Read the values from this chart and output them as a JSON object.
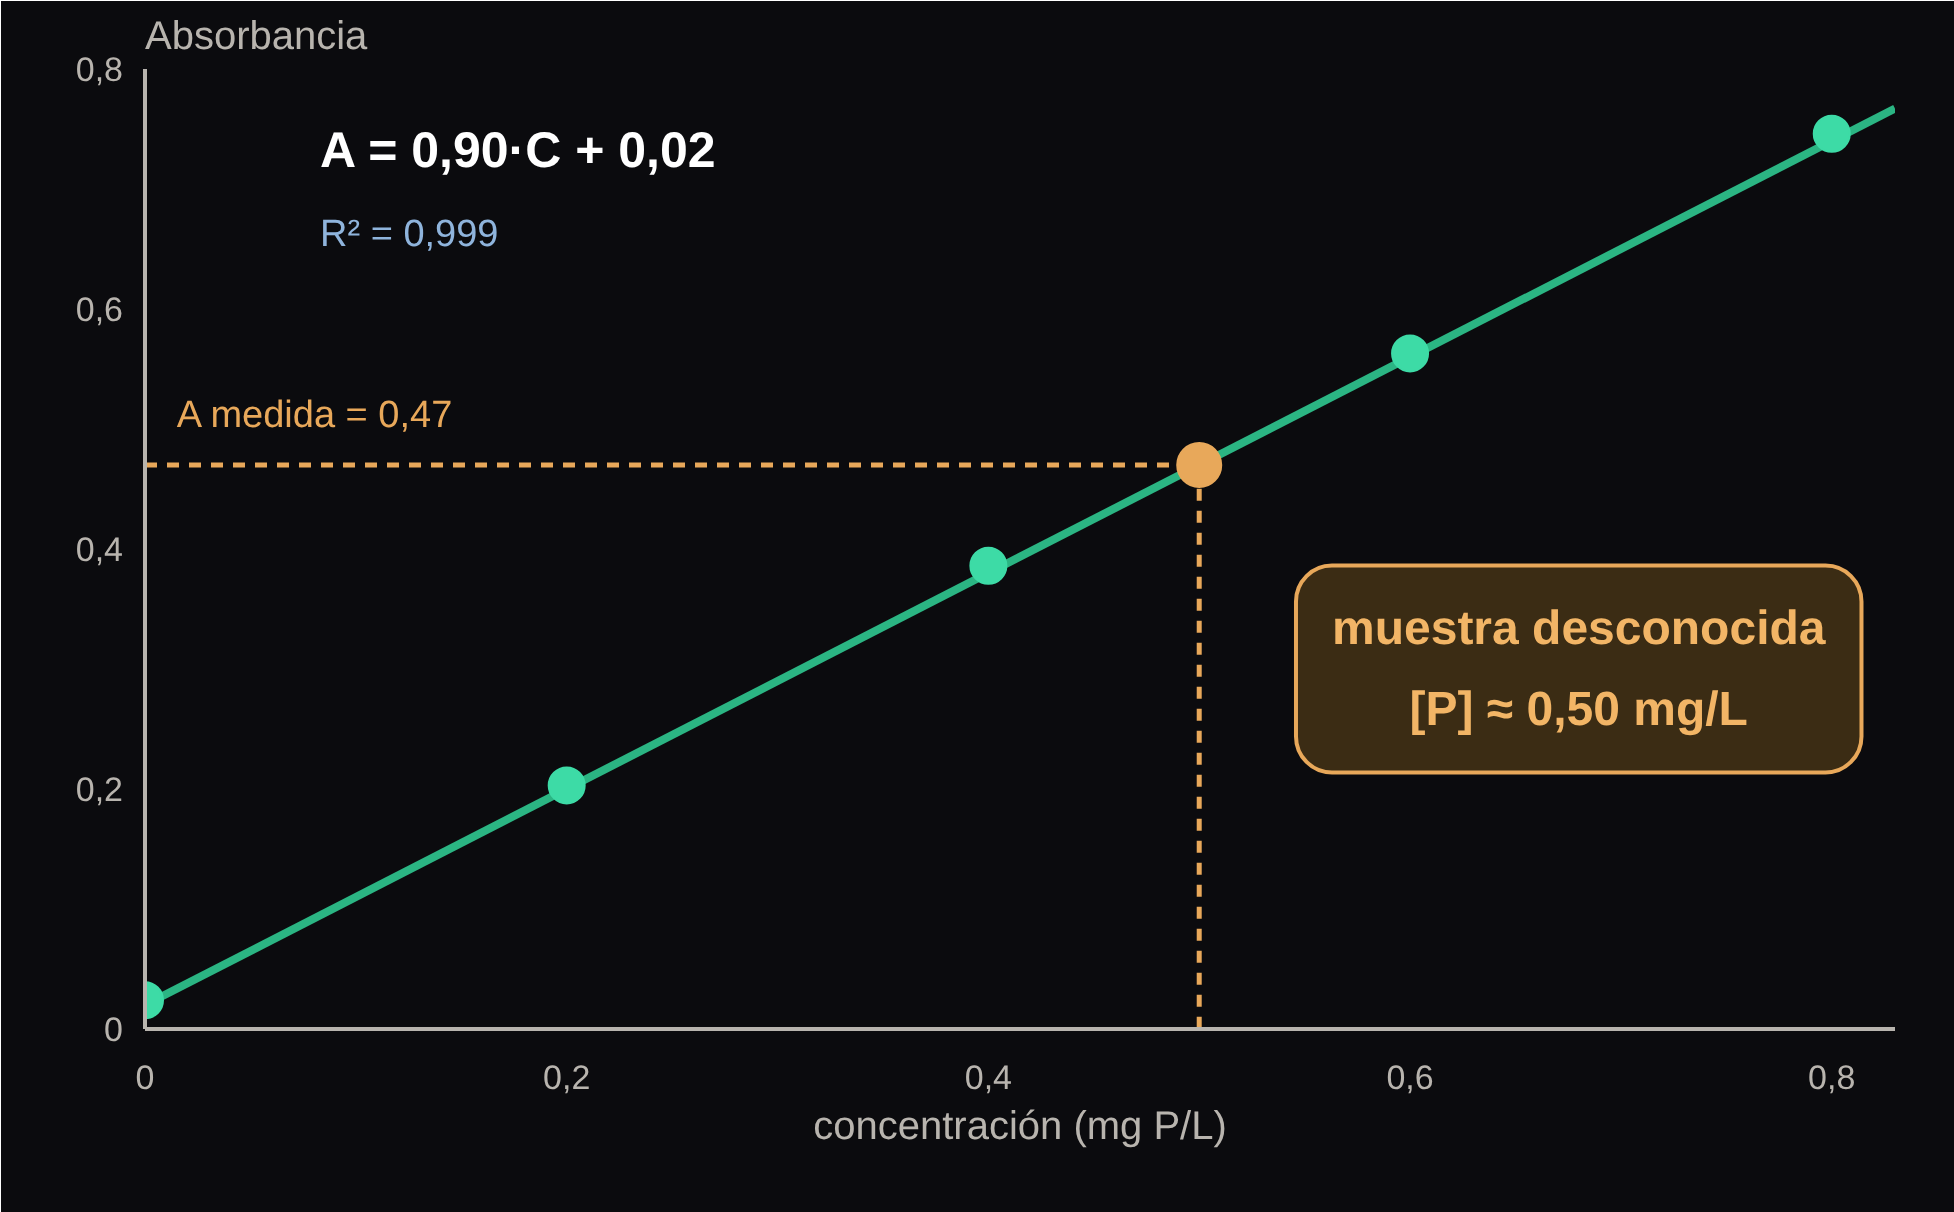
{
  "chart_data": {
    "type": "scatter",
    "ylabel": "Absorbancia",
    "xlabel": "concentración (mg P/L)",
    "xlim": [
      0,
      0.83
    ],
    "ylim": [
      0,
      0.8
    ],
    "xticks": [
      0,
      {
        "value": 0.2,
        "label": "0,2"
      },
      {
        "value": 0.4,
        "label": "0,4"
      },
      {
        "value": 0.6,
        "label": "0,6"
      },
      {
        "value": 0.8,
        "label": "0,8"
      }
    ],
    "yticks": [
      0,
      {
        "value": 0.2,
        "label": "0,2"
      },
      {
        "value": 0.4,
        "label": "0,4"
      },
      {
        "value": 0.6,
        "label": "0,6"
      },
      {
        "value": 0.8,
        "label": "0,8"
      }
    ],
    "grid": false,
    "series": [
      {
        "type": "line",
        "color": "#2bb583",
        "x": [
          0,
          0.83
        ],
        "values": [
          0.02,
          0.767
        ],
        "marker": "none",
        "line_style": "solid"
      },
      {
        "color": "#3ddba6",
        "x": [
          0,
          0.2,
          0.4,
          0.6,
          0.8
        ],
        "values": [
          0.024,
          0.203,
          0.386,
          0.563,
          0.746
        ],
        "marker": "circle"
      },
      {
        "type": "line",
        "color": "#e8a85a",
        "x": [
          0,
          0.5,
          0.5
        ],
        "values": [
          0.47,
          0.47,
          0
        ],
        "marker": "none",
        "line_style": "dashed"
      },
      {
        "color": "#e8a85a",
        "x": [
          0.5
        ],
        "values": [
          0.47
        ],
        "marker": "circle"
      }
    ],
    "annotations": [
      "A = 0,90·C + 0,02",
      "R² = 0,999",
      {
        "text": "A medida = 0,47",
        "x": 0,
        "y": 0.47
      },
      "muestra desconocida",
      "[P] ≈ 0,50 mg/L"
    ]
  }
}
